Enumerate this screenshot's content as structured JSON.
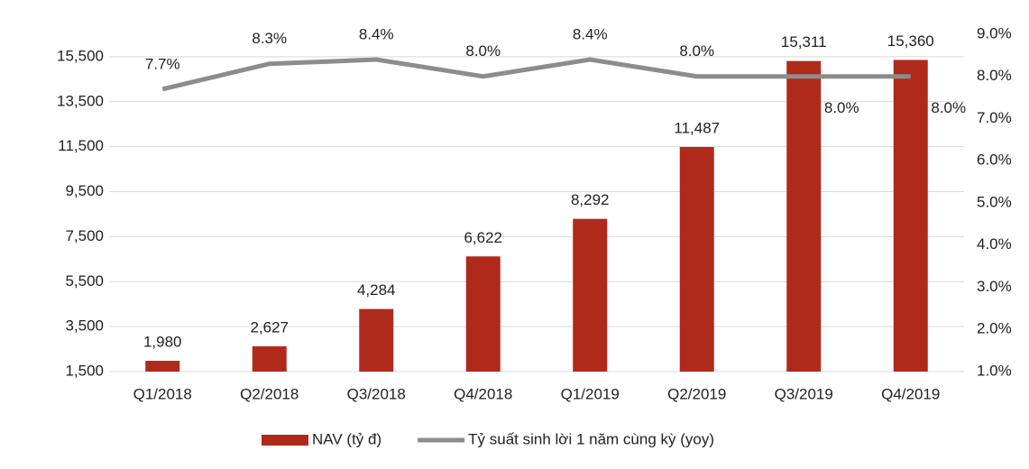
{
  "chart_data": {
    "type": "bar_line",
    "categories": [
      "Q1/2018",
      "Q2/2018",
      "Q3/2018",
      "Q4/2018",
      "Q1/2019",
      "Q2/2019",
      "Q3/2019",
      "Q4/2019"
    ],
    "series": [
      {
        "name": "NAV (tỷ đ)",
        "type": "bar",
        "color": "#b02a1c",
        "values": [
          1980,
          2627,
          4284,
          6622,
          8292,
          11487,
          15311,
          15360
        ],
        "value_labels": [
          "1,980",
          "2,627",
          "4,284",
          "6,622",
          "8,292",
          "11,487",
          "15,311",
          "15,360"
        ]
      },
      {
        "name": "Tỷ suất sinh lời 1 năm cùng kỳ (yoy)",
        "type": "line",
        "axis": "y2",
        "color": "#8c8c8c",
        "values": [
          7.7,
          8.3,
          8.4,
          8.0,
          8.4,
          8.0,
          8.0,
          8.0
        ],
        "value_labels": [
          "7.7%",
          "8.3%",
          "8.4%",
          "8.0%",
          "8.4%",
          "8.0%",
          "8.0%",
          "8.0%"
        ]
      }
    ],
    "ylim": [
      1500,
      16500
    ],
    "yticks": [
      {
        "value": 1500,
        "label": "1,500"
      },
      {
        "value": 3500,
        "label": "3,500"
      },
      {
        "value": 5500,
        "label": "5,500"
      },
      {
        "value": 7500,
        "label": "7,500"
      },
      {
        "value": 9500,
        "label": "9,500"
      },
      {
        "value": 11500,
        "label": "11,500"
      },
      {
        "value": 13500,
        "label": "13,500"
      },
      {
        "value": 15500,
        "label": "15,500"
      }
    ],
    "y2lim": [
      1,
      9
    ],
    "y2ticks": [
      {
        "value": 1,
        "label": "1.0%"
      },
      {
        "value": 2,
        "label": "2.0%"
      },
      {
        "value": 3,
        "label": "3.0%"
      },
      {
        "value": 4,
        "label": "4.0%"
      },
      {
        "value": 5,
        "label": "5.0%"
      },
      {
        "value": 6,
        "label": "6.0%"
      },
      {
        "value": 7,
        "label": "7.0%"
      },
      {
        "value": 8,
        "label": "8.0%"
      },
      {
        "value": 9,
        "label": "9.0%"
      }
    ],
    "grid": true,
    "legend": "bottom"
  }
}
